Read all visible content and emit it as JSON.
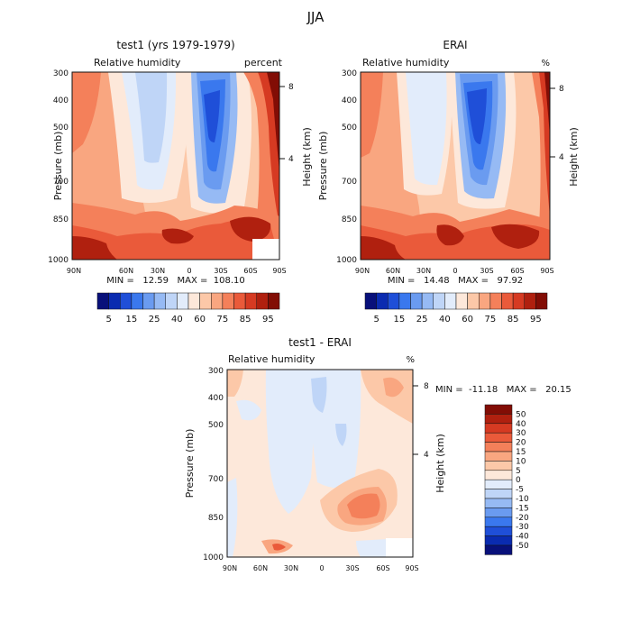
{
  "figure": {
    "title": "JJA"
  },
  "chart_data": [
    {
      "type": "heatmap",
      "title": "test1 (yrs 1979-1979)",
      "subtitle_left": "Relative humidity",
      "subtitle_right": "percent",
      "ylabel": "Pressure (mb)",
      "ylabel_right": "Height (km)",
      "x_ticks": [
        "90N",
        "60N",
        "30N",
        "0",
        "30S",
        "60S",
        "90S"
      ],
      "y_ticks": [
        "300",
        "400",
        "500",
        "700",
        "850",
        "1000"
      ],
      "y_right_ticks": [
        "8",
        "4"
      ],
      "stats": "MIN =   12.59   MAX =  108.10",
      "colorbar": {
        "labels": [
          "5",
          "15",
          "25",
          "40",
          "60",
          "75",
          "85",
          "95"
        ],
        "colors": [
          "#08107a",
          "#0a2bb0",
          "#1f4fd8",
          "#3a78ee",
          "#6a9bf0",
          "#96baf4",
          "#bfd5f7",
          "#e2ecfb",
          "#fde8da",
          "#fcc8a8",
          "#f9a680",
          "#f4805a",
          "#ea5a3a",
          "#d63a22",
          "#b0200f",
          "#820d05"
        ]
      },
      "ylim": [
        1000,
        300
      ]
    },
    {
      "type": "heatmap",
      "title": "ERAI",
      "subtitle_left": "Relative humidity",
      "subtitle_right": "%",
      "ylabel": "Pressure (mb)",
      "ylabel_right": "Height (km)",
      "x_ticks": [
        "90N",
        "60N",
        "30N",
        "0",
        "30S",
        "60S",
        "90S"
      ],
      "y_ticks": [
        "300",
        "400",
        "500",
        "700",
        "850",
        "1000"
      ],
      "y_right_ticks": [
        "8",
        "4"
      ],
      "stats": "MIN =   14.48   MAX =   97.92",
      "colorbar": {
        "labels": [
          "5",
          "15",
          "25",
          "40",
          "60",
          "75",
          "85",
          "95"
        ],
        "colors": [
          "#08107a",
          "#0a2bb0",
          "#1f4fd8",
          "#3a78ee",
          "#6a9bf0",
          "#96baf4",
          "#bfd5f7",
          "#e2ecfb",
          "#fde8da",
          "#fcc8a8",
          "#f9a680",
          "#f4805a",
          "#ea5a3a",
          "#d63a22",
          "#b0200f",
          "#820d05"
        ]
      },
      "ylim": [
        1000,
        300
      ]
    },
    {
      "type": "heatmap",
      "title": "test1 - ERAI",
      "subtitle_left": "Relative humidity",
      "subtitle_right": "%",
      "ylabel": "Pressure (mb)",
      "ylabel_right": "Height (km)",
      "x_ticks": [
        "90N",
        "60N",
        "30N",
        "0",
        "30S",
        "60S",
        "90S"
      ],
      "y_ticks": [
        "300",
        "400",
        "500",
        "700",
        "850",
        "1000"
      ],
      "y_right_ticks": [
        "8",
        "4"
      ],
      "stats": "MIN =  -11.18   MAX =   20.15",
      "colorbar": {
        "labels": [
          "50",
          "40",
          "30",
          "20",
          "15",
          "10",
          "5",
          "0",
          "-5",
          "-10",
          "-15",
          "-20",
          "-30",
          "-40",
          "-50"
        ],
        "colors": [
          "#820d05",
          "#b0200f",
          "#d63a22",
          "#ea5a3a",
          "#f4805a",
          "#f9a680",
          "#fcc8a8",
          "#fde8da",
          "#e2ecfb",
          "#bfd5f7",
          "#96baf4",
          "#6a9bf0",
          "#3a78ee",
          "#1f4fd8",
          "#0a2bb0",
          "#08107a"
        ]
      },
      "ylim": [
        1000,
        300
      ]
    }
  ]
}
